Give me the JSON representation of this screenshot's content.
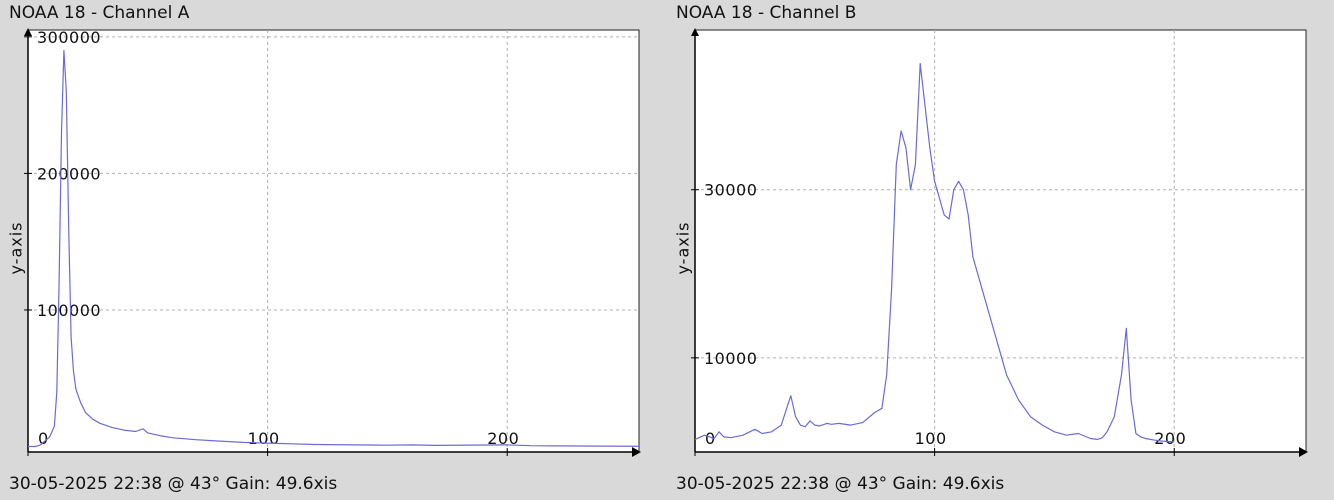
{
  "colors": {
    "background": "#d9d9d9",
    "plot_bg": "#ffffff",
    "series": "#6b6bd6",
    "grid": "#b0b0b0",
    "axis": "#000000"
  },
  "chart_data": [
    {
      "type": "line",
      "title": "NOAA 18 - Channel A",
      "xlabel": "",
      "ylabel": "y-axis",
      "caption": "30-05-2025 22:38 @ 43° Gain: 49.6xis",
      "xlim": [
        0,
        255
      ],
      "ylim": [
        -4000,
        305000
      ],
      "x_ticks": [
        0,
        100,
        200
      ],
      "y_ticks": [
        100000,
        200000,
        300000
      ],
      "x_tick_labels": [
        "0",
        "100",
        "200"
      ],
      "y_tick_labels": [
        "100000",
        "200000",
        "300000"
      ],
      "grid": true,
      "series": [
        {
          "x": [
            0,
            3,
            5,
            7,
            9,
            11,
            12,
            13,
            14,
            15,
            16,
            17,
            18,
            19,
            20,
            22,
            24,
            27,
            30,
            35,
            40,
            45,
            48,
            50,
            55,
            60,
            70,
            80,
            90,
            100,
            110,
            120,
            150,
            160,
            170,
            200,
            210,
            220,
            240,
            255
          ],
          "y": [
            0,
            0,
            1000,
            4000,
            7000,
            15000,
            40000,
            120000,
            230000,
            290000,
            260000,
            160000,
            80000,
            55000,
            42000,
            32000,
            25000,
            20000,
            17000,
            14000,
            12000,
            11000,
            13000,
            10000,
            8000,
            6500,
            5000,
            4000,
            3000,
            2500,
            2000,
            1500,
            1000,
            1200,
            800,
            1200,
            600,
            500,
            300,
            200
          ]
        }
      ]
    },
    {
      "type": "line",
      "title": "NOAA 18 - Channel B",
      "xlabel": "",
      "ylabel": "y-axis",
      "caption": "30-05-2025 22:38 @ 43° Gain: 49.6xis",
      "xlim": [
        0,
        255
      ],
      "ylim": [
        -1200,
        49000
      ],
      "x_ticks": [
        0,
        100,
        200
      ],
      "y_ticks": [
        10000,
        30000
      ],
      "x_tick_labels": [
        "0",
        "100",
        "200"
      ],
      "y_tick_labels": [
        "10000",
        "30000"
      ],
      "grid": true,
      "series": [
        {
          "x": [
            0,
            4,
            8,
            10,
            12,
            15,
            20,
            25,
            28,
            32,
            36,
            40,
            42,
            44,
            46,
            48,
            50,
            52,
            55,
            57,
            60,
            65,
            70,
            75,
            78,
            80,
            82,
            84,
            86,
            88,
            90,
            92,
            94,
            96,
            98,
            100,
            102,
            104,
            106,
            108,
            110,
            112,
            114,
            116,
            118,
            120,
            122,
            124,
            126,
            128,
            130,
            135,
            140,
            145,
            150,
            155,
            160,
            165,
            168,
            170,
            172,
            175,
            178,
            180,
            182,
            184,
            186,
            188,
            190,
            192,
            195,
            200
          ],
          "y": [
            300,
            800,
            400,
            1200,
            600,
            500,
            800,
            1500,
            1000,
            1200,
            2000,
            5500,
            3000,
            2000,
            1800,
            2500,
            2000,
            1900,
            2200,
            2100,
            2200,
            2000,
            2300,
            3500,
            4000,
            8000,
            18000,
            33000,
            37000,
            35000,
            30000,
            33000,
            45000,
            40000,
            35000,
            31000,
            29000,
            27000,
            26500,
            30000,
            31000,
            30000,
            27000,
            22000,
            20000,
            18000,
            16000,
            14000,
            12000,
            10000,
            8000,
            5000,
            3000,
            2000,
            1200,
            800,
            1000,
            400,
            300,
            500,
            1200,
            3000,
            8000,
            13500,
            5000,
            1000,
            600,
            400,
            300,
            200,
            100,
            0
          ]
        }
      ]
    }
  ]
}
